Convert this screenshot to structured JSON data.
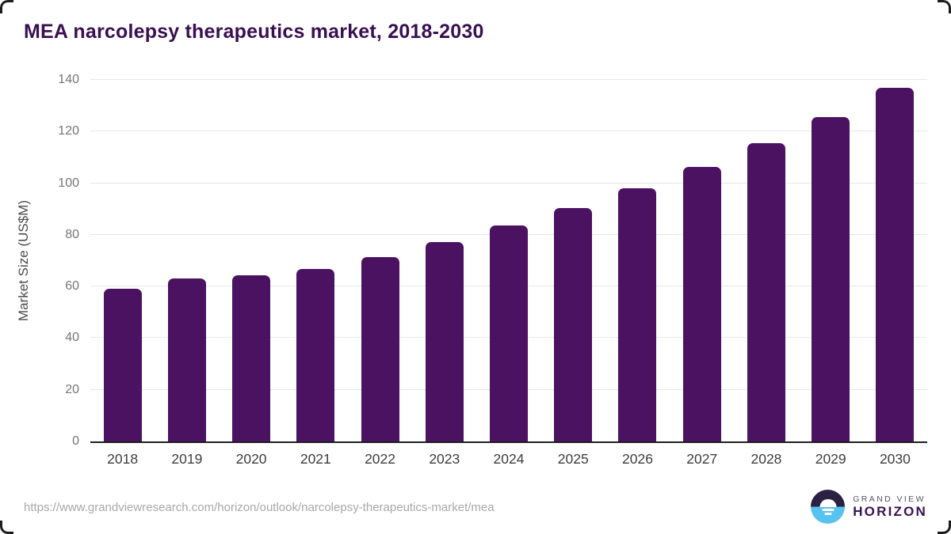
{
  "page": {
    "title": "MEA narcolepsy therapeutics market, 2018-2030"
  },
  "chart_data": {
    "type": "bar",
    "title": "MEA narcolepsy therapeutics market, 2018-2030",
    "categories": [
      "2018",
      "2019",
      "2020",
      "2021",
      "2022",
      "2023",
      "2024",
      "2025",
      "2026",
      "2027",
      "2028",
      "2029",
      "2030"
    ],
    "values": [
      59.0,
      63.2,
      64.3,
      66.9,
      71.5,
      77.3,
      83.5,
      90.4,
      97.9,
      106.2,
      115.4,
      125.7,
      136.9
    ],
    "xlabel": "",
    "ylabel": "Market Size (US$M)",
    "ylim": [
      0,
      140
    ],
    "yticks": [
      0,
      20,
      40,
      60,
      80,
      100,
      120,
      140
    ],
    "grid": true,
    "bar_color": "#4b1262"
  },
  "footer": {
    "source_url": "https://www.grandviewresearch.com/horizon/outlook/narcolepsy-therapeutics-market/mea",
    "logo": {
      "top": "GRAND VIEW",
      "bottom": "HORIZON"
    }
  },
  "colors": {
    "bar": "#4b1262",
    "title_text": "#3a0f52",
    "gridline": "#e7e7e7",
    "axis_line": "#1f1f1f",
    "y_tick_label": "#757575",
    "x_tick_label": "#3d3d3d",
    "axis_title": "#4c4c4c",
    "url_text": "#a8a8a8",
    "logo_dark_half": "#2a2145",
    "logo_blue_half": "#58c3f0",
    "logo_top_text": "#56506a",
    "logo_bottom_text": "#3b1053"
  }
}
